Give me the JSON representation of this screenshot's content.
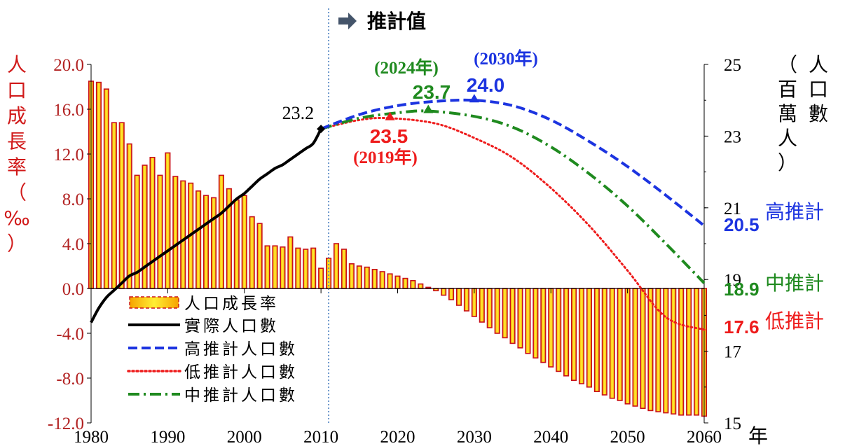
{
  "chart_data": {
    "type": "bar+line",
    "header_label": "推計值",
    "left_axis_title_chars": [
      "人",
      "口",
      "成",
      "長",
      "率",
      "（",
      "‰",
      "）"
    ],
    "right_axis_title_cols": [
      [
        "人",
        "口",
        "數"
      ],
      [
        "（",
        "百",
        "萬",
        "人",
        "）"
      ]
    ],
    "x_unit": "年",
    "x_range": [
      1980,
      2060
    ],
    "x_ticks": [
      "1980",
      "1990",
      "2000",
      "2010",
      "2020",
      "2030",
      "2040",
      "2050",
      "2060"
    ],
    "left_ylim": [
      -12,
      20
    ],
    "left_ticks": [
      "20.0",
      "16.0",
      "12.0",
      "8.0",
      "4.0",
      "0.0",
      "-4.0",
      "-8.0",
      "-12.0"
    ],
    "right_ylim": [
      15,
      25
    ],
    "right_ticks": [
      "25",
      "23",
      "21",
      "19",
      "17",
      "15"
    ],
    "projection_start_year": 2011,
    "growth_rate": {
      "name": "人口成長率",
      "x": [
        1980,
        1981,
        1982,
        1983,
        1984,
        1985,
        1986,
        1987,
        1988,
        1989,
        1990,
        1991,
        1992,
        1993,
        1994,
        1995,
        1996,
        1997,
        1998,
        1999,
        2000,
        2001,
        2002,
        2003,
        2004,
        2005,
        2006,
        2007,
        2008,
        2009,
        2010,
        2011,
        2012,
        2013,
        2014,
        2015,
        2016,
        2017,
        2018,
        2019,
        2020,
        2021,
        2022,
        2023,
        2024,
        2025,
        2026,
        2027,
        2028,
        2029,
        2030,
        2031,
        2032,
        2033,
        2034,
        2035,
        2036,
        2037,
        2038,
        2039,
        2040,
        2041,
        2042,
        2043,
        2044,
        2045,
        2046,
        2047,
        2048,
        2049,
        2050,
        2051,
        2052,
        2053,
        2054,
        2055,
        2056,
        2057,
        2058,
        2059,
        2060
      ],
      "values": [
        18.5,
        18.4,
        17.8,
        14.8,
        14.8,
        12.9,
        10.1,
        11.0,
        11.7,
        10.1,
        12.1,
        10.0,
        9.6,
        9.4,
        8.7,
        8.3,
        8.1,
        10.1,
        8.9,
        7.9,
        8.3,
        6.4,
        5.8,
        3.8,
        3.8,
        3.7,
        4.6,
        3.6,
        3.5,
        3.6,
        1.8,
        2.7,
        4.0,
        3.5,
        2.2,
        2.0,
        1.9,
        1.7,
        1.5,
        1.3,
        1.1,
        0.9,
        0.7,
        0.4,
        0.1,
        -0.2,
        -0.6,
        -1.0,
        -1.5,
        -2.0,
        -2.5,
        -3.0,
        -3.5,
        -4.0,
        -4.4,
        -4.9,
        -5.3,
        -5.8,
        -6.2,
        -6.6,
        -7.0,
        -7.4,
        -7.8,
        -8.2,
        -8.5,
        -8.8,
        -9.2,
        -9.5,
        -9.8,
        -10.0,
        -10.3,
        -10.5,
        -10.7,
        -10.9,
        -11.0,
        -11.1,
        -11.2,
        -11.3,
        -11.3,
        -11.3,
        -11.4
      ]
    },
    "actual": {
      "name": "實際人口數",
      "x": [
        1980,
        1981,
        1982,
        1983,
        1984,
        1985,
        1986,
        1987,
        1988,
        1989,
        1990,
        1991,
        1992,
        1993,
        1994,
        1995,
        1996,
        1997,
        1998,
        1999,
        2000,
        2001,
        2002,
        2003,
        2004,
        2005,
        2006,
        2007,
        2008,
        2009,
        2010
      ],
      "values": [
        17.8,
        18.2,
        18.5,
        18.7,
        18.9,
        19.1,
        19.2,
        19.35,
        19.5,
        19.65,
        19.8,
        19.95,
        20.1,
        20.25,
        20.4,
        20.55,
        20.7,
        20.85,
        21.05,
        21.25,
        21.4,
        21.6,
        21.8,
        21.95,
        22.1,
        22.2,
        22.35,
        22.5,
        22.65,
        22.8,
        23.2
      ],
      "end_label": "23.2"
    },
    "high": {
      "name": "高推計人口數",
      "x": [
        2010,
        2015,
        2020,
        2025,
        2030,
        2035,
        2040,
        2045,
        2050,
        2055,
        2060
      ],
      "values": [
        23.2,
        23.6,
        23.85,
        23.97,
        24.0,
        23.85,
        23.45,
        22.85,
        22.15,
        21.35,
        20.5
      ],
      "peak_year_label": "(2030年)",
      "peak_value_label": "24.0",
      "end_value_label": "20.5",
      "end_name_label": "高推計",
      "color": "#1c34e0"
    },
    "medium": {
      "name": "中推計人口數",
      "x": [
        2010,
        2015,
        2020,
        2024,
        2030,
        2035,
        2040,
        2045,
        2050,
        2055,
        2060
      ],
      "values": [
        23.2,
        23.5,
        23.65,
        23.7,
        23.55,
        23.25,
        22.7,
        21.95,
        21.05,
        20.0,
        18.9
      ],
      "peak_year_label": "(2024年)",
      "peak_value_label": "23.7",
      "end_value_label": "18.9",
      "end_name_label": "中推計",
      "color": "#1f8a1f"
    },
    "low": {
      "name": "低推計人口數",
      "x": [
        2010,
        2015,
        2019,
        2025,
        2030,
        2035,
        2040,
        2045,
        2050,
        2055,
        2060
      ],
      "values": [
        23.2,
        23.45,
        23.5,
        23.35,
        22.95,
        22.4,
        21.55,
        20.5,
        19.25,
        17.95,
        17.6
      ],
      "peak_year_label": "(2019年)",
      "peak_value_label": "23.5",
      "end_value_label": "17.6",
      "end_name_label": "低推計",
      "color": "#ee1c1c"
    },
    "legend_placement": "bottom-left",
    "grid": false
  }
}
